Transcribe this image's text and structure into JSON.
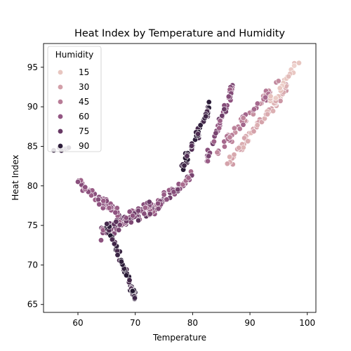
{
  "chart_data": {
    "type": "scatter",
    "title": "Heat Index by Temperature and Humidity",
    "xlabel": "Temperature",
    "ylabel": "Heat Index",
    "xlim": [
      54,
      101.5
    ],
    "ylim": [
      64,
      98
    ],
    "xticks": [
      60,
      70,
      80,
      90,
      100
    ],
    "yticks": [
      65,
      70,
      75,
      80,
      85,
      90,
      95
    ],
    "grid": false,
    "legend": {
      "title": "Humidity",
      "placement": "top-left",
      "entries": [
        {
          "label": "15",
          "color": "#e8c6c0"
        },
        {
          "label": "30",
          "color": "#d3a0a9"
        },
        {
          "label": "45",
          "color": "#b87c97"
        },
        {
          "label": "60",
          "color": "#935683"
        },
        {
          "label": "75",
          "color": "#683965"
        },
        {
          "label": "90",
          "color": "#2e1e3b"
        }
      ]
    },
    "color_scale": {
      "min_humidity": 10,
      "max_humidity": 95,
      "stops": [
        [
          10,
          "#efd4cf"
        ],
        [
          15,
          "#e8c6c0"
        ],
        [
          30,
          "#d3a0a9"
        ],
        [
          45,
          "#b87c97"
        ],
        [
          60,
          "#935683"
        ],
        [
          75,
          "#683965"
        ],
        [
          90,
          "#2e1e3b"
        ],
        [
          95,
          "#231730"
        ]
      ]
    },
    "clusters": [
      {
        "humidity": [
          20,
          35
        ],
        "x_range": [
          86,
          96.5
        ],
        "y_start": 82.5,
        "y_end": 92.5,
        "spread": 1.0,
        "count": 70
      },
      {
        "humidity": [
          35,
          55
        ],
        "x_range": [
          84,
          95
        ],
        "y_start": 84,
        "y_end": 93.5,
        "spread": 1.2,
        "count": 45
      },
      {
        "humidity": [
          55,
          75
        ],
        "x_range": [
          82.5,
          87
        ],
        "y_start": 83.5,
        "y_end": 92.5,
        "spread": 1.2,
        "count": 50
      },
      {
        "humidity": [
          80,
          95
        ],
        "x_range": [
          78,
          83
        ],
        "y_start": 82,
        "y_end": 90,
        "spread": 1.3,
        "count": 45
      },
      {
        "humidity": [
          50,
          75
        ],
        "x_range": [
          73,
          80
        ],
        "y_start": 77,
        "y_end": 81.5,
        "spread": 1.0,
        "count": 50
      },
      {
        "humidity": [
          55,
          80
        ],
        "x_range": [
          64,
          73
        ],
        "y_start": 74,
        "y_end": 77.5,
        "spread": 1.3,
        "count": 100
      },
      {
        "humidity": [
          55,
          65
        ],
        "x_range": [
          60,
          67
        ],
        "y_start": 80.5,
        "y_end": 76.5,
        "spread": 1.0,
        "count": 60
      },
      {
        "humidity": [
          80,
          95
        ],
        "x_range": [
          65,
          70
        ],
        "y_start": 75,
        "y_end": 66,
        "spread": 1.0,
        "count": 60
      },
      {
        "humidity": [
          85,
          95
        ],
        "x_range": [
          55,
          58.5
        ],
        "y_start": 84,
        "y_end": 85,
        "spread": 0.6,
        "count": 8
      },
      {
        "humidity": [
          10,
          20
        ],
        "x_range": [
          93,
          99
        ],
        "y_start": 90,
        "y_end": 96,
        "spread": 1.0,
        "count": 20
      }
    ]
  }
}
